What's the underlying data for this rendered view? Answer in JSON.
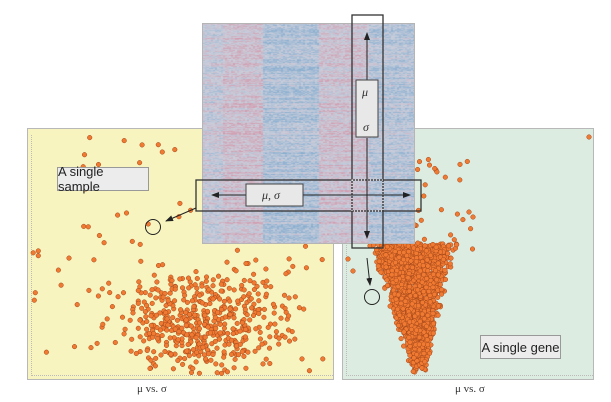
{
  "left_panel": {
    "label": "A single sample",
    "axis_caption": "μ vs. σ",
    "color": "#f7f4bf"
  },
  "right_panel": {
    "label": "A single gene",
    "axis_caption": "μ vs. σ",
    "color": "#dcece0"
  },
  "heatmap": {
    "colors": {
      "high": "#d9627a",
      "low": "#4a8fc4"
    }
  },
  "column_box": {
    "mu": "μ",
    "sigma": "σ"
  },
  "row_box": {
    "label": "μ, σ"
  },
  "point_color": "#f07a32"
}
